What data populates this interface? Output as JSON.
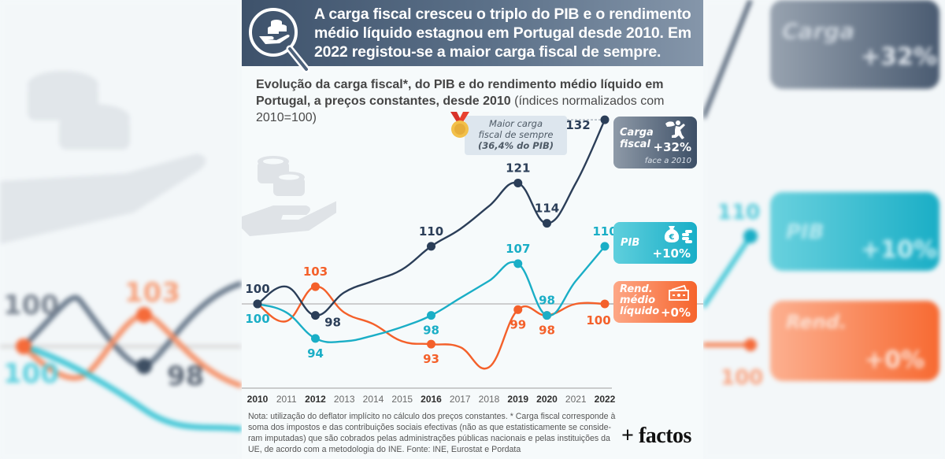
{
  "header": {
    "title": "A carga fiscal cresceu o triplo do PIB e o rendimento médio líquido estagnou em Portugal desde 2010. Em 2022 registou-se a maior carga fiscal de sempre."
  },
  "subtitle": {
    "bold": "Evolução da carga fiscal*, do PIB e do rendimento médio líquido em Portugal, a preços constantes, desde 2010",
    "normal": " (índices normalizados com 2010=100)"
  },
  "callout": {
    "line1": "Maior carga",
    "line2": "fiscal de sempre",
    "line3": "(36,4% do PIB)"
  },
  "cards": {
    "carga": {
      "label1": "Carga",
      "label2": "fiscal",
      "value": "+32%",
      "note": "face a 2010"
    },
    "pib": {
      "label": "PIB",
      "value": "+10%"
    },
    "rend": {
      "label1": "Rend.",
      "label2": "médio",
      "label3": "líquido",
      "value": "+0%"
    }
  },
  "note": "Nota: utilização do deflator implícito no cálculo dos preços constantes. * Carga fiscal corresponde à soma dos impostos e das contribuições sociais efectivas (não as que estatisticamente se conside-ram imputadas) que são cobrados pelas administrações públicas nacionais e pelas instituições da UE, de acordo com a metodologia do INE. Fonte: INE, Eurostat e Pordata",
  "brand": "+ factos",
  "colors": {
    "carga": "#2b3e58",
    "pib": "#1aaec6",
    "rend": "#f4602a",
    "baseline": "#b5b5b5"
  },
  "chart_data": {
    "type": "line",
    "title": "Evolução da carga fiscal*, do PIB e do rendimento médio líquido em Portugal, a preços constantes, desde 2010 (índices normalizados com 2010=100)",
    "xlabel": "",
    "ylabel": "",
    "x": [
      2010,
      2011,
      2012,
      2013,
      2014,
      2015,
      2016,
      2017,
      2018,
      2019,
      2020,
      2021,
      2022
    ],
    "x_tick_labels": [
      "2010",
      "2011",
      "2012",
      "2013",
      "2014",
      "2015",
      "2016",
      "2017",
      "2018",
      "2019",
      "2020",
      "2021",
      "2022"
    ],
    "x_bold_ticks": [
      "2010",
      "2012",
      "2016",
      "2019",
      "2020",
      "2022"
    ],
    "baseline": 100,
    "ylim": [
      88,
      134
    ],
    "grid": false,
    "legend": "right",
    "series": [
      {
        "name": "Carga fiscal",
        "key": "carga",
        "values": [
          100,
          103,
          98,
          102,
          104,
          106,
          110,
          113,
          117,
          121,
          114,
          121,
          132
        ],
        "labeled_points": [
          {
            "x": 2010,
            "label": "100",
            "pos": "above"
          },
          {
            "x": 2012,
            "label": "98",
            "pos": "below-right"
          },
          {
            "x": 2016,
            "label": "110",
            "pos": "above"
          },
          {
            "x": 2019,
            "label": "121",
            "pos": "above"
          },
          {
            "x": 2020,
            "label": "114",
            "pos": "above"
          },
          {
            "x": 2022,
            "label": "132",
            "pos": "left"
          }
        ]
      },
      {
        "name": "PIB",
        "key": "pib",
        "values": [
          100,
          98.5,
          94,
          93.5,
          94.5,
          96,
          98,
          101,
          104,
          107,
          98,
          104,
          110
        ],
        "labeled_points": [
          {
            "x": 2010,
            "label": "100",
            "pos": "below"
          },
          {
            "x": 2012,
            "label": "94",
            "pos": "below"
          },
          {
            "x": 2016,
            "label": "98",
            "pos": "below"
          },
          {
            "x": 2019,
            "label": "107",
            "pos": "above"
          },
          {
            "x": 2020,
            "label": "98",
            "pos": "above"
          },
          {
            "x": 2022,
            "label": "110",
            "pos": "above"
          }
        ]
      },
      {
        "name": "Rend. médio líquido",
        "key": "rend",
        "values": [
          100,
          97,
          103,
          98.5,
          96.5,
          93.5,
          93,
          92.5,
          89,
          99,
          98,
          100,
          100
        ],
        "labeled_points": [
          {
            "x": 2010,
            "label": "",
            "pos": "none"
          },
          {
            "x": 2012,
            "label": "103",
            "pos": "above"
          },
          {
            "x": 2016,
            "label": "93",
            "pos": "below"
          },
          {
            "x": 2019,
            "label": "99",
            "pos": "below"
          },
          {
            "x": 2020,
            "label": "98",
            "pos": "below"
          },
          {
            "x": 2022,
            "label": "100",
            "pos": "below-left"
          }
        ]
      }
    ],
    "annotations": [
      {
        "text": "Maior carga fiscal de sempre (36,4% do PIB)",
        "x": 2022,
        "series": "Carga fiscal"
      },
      {
        "text": "Carga fiscal +32% face a 2010",
        "series": "Carga fiscal"
      },
      {
        "text": "PIB +10%",
        "series": "PIB"
      },
      {
        "text": "Rend. médio líquido +0%",
        "series": "Rend. médio líquido"
      }
    ]
  }
}
